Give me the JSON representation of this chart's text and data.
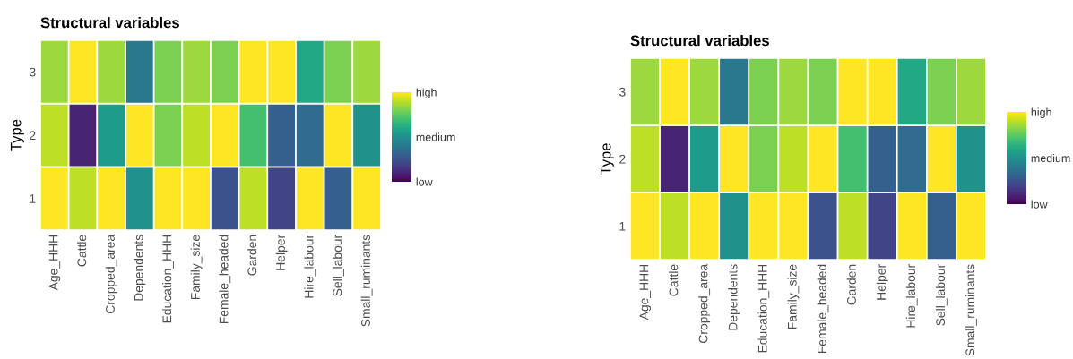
{
  "chart_data": [
    {
      "type": "heatmap",
      "title": "Structural variables",
      "ylabel": "Type",
      "categories": [
        "Age_HHH",
        "Cattle",
        "Cropped_area",
        "Dependents",
        "Education_HHH",
        "Family_size",
        "Female_headed",
        "Garden",
        "Helper",
        "Hire_labour",
        "Sell_labour",
        "Small_ruminants"
      ],
      "y_categories": [
        "3",
        "2",
        "1"
      ],
      "cells": [
        [
          0.85,
          1.0,
          0.85,
          0.4,
          0.8,
          0.85,
          0.8,
          1.0,
          1.0,
          0.6,
          0.8,
          0.85
        ],
        [
          0.9,
          0.1,
          0.55,
          1.0,
          0.8,
          0.9,
          1.0,
          0.7,
          0.3,
          0.35,
          1.0,
          0.5
        ],
        [
          1.0,
          0.9,
          1.0,
          0.5,
          1.0,
          1.0,
          0.25,
          0.9,
          0.2,
          1.0,
          0.3,
          1.0
        ]
      ],
      "clim": [
        0,
        1
      ],
      "cticks": [
        {
          "value": 0,
          "label": "low"
        },
        {
          "value": 0.5,
          "label": "medium"
        },
        {
          "value": 1,
          "label": "high"
        }
      ]
    },
    {
      "type": "heatmap",
      "title": "Structural variables",
      "ylabel": "Type",
      "categories": [
        "Age_HHH",
        "Cattle",
        "Cropped_area",
        "Dependents",
        "Education_HHH",
        "Family_size",
        "Female_headed",
        "Garden",
        "Helper",
        "Hire_labour",
        "Sell_labour",
        "Small_ruminants"
      ],
      "y_categories": [
        "3",
        "2",
        "1"
      ],
      "cells": [
        [
          0.85,
          1.0,
          0.85,
          0.4,
          0.8,
          0.85,
          0.8,
          1.0,
          1.0,
          0.6,
          0.8,
          0.85
        ],
        [
          0.9,
          0.1,
          0.55,
          1.0,
          0.8,
          0.9,
          1.0,
          0.7,
          0.3,
          0.35,
          1.0,
          0.5
        ],
        [
          1.0,
          0.9,
          1.0,
          0.5,
          1.0,
          1.0,
          0.25,
          0.9,
          0.2,
          1.0,
          0.3,
          1.0
        ]
      ],
      "clim": [
        0,
        1
      ],
      "cticks": [
        {
          "value": 0,
          "label": "low"
        },
        {
          "value": 0.5,
          "label": "medium"
        },
        {
          "value": 1,
          "label": "high"
        }
      ]
    }
  ]
}
